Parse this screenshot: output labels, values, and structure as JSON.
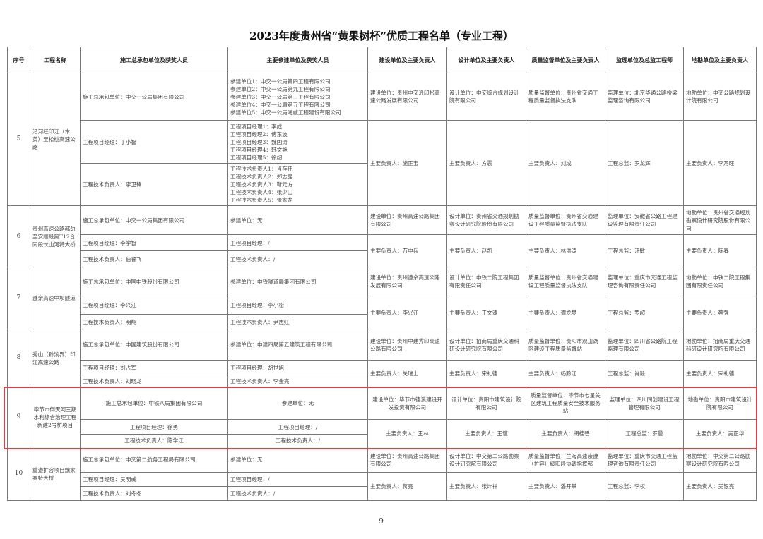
{
  "title": "2023年度贵州省“黄果树杯”优质工程名单（专业工程）",
  "page_number": "9",
  "highlight_color": "#d9434a",
  "headers": [
    "序号",
    "工程名称",
    "施工总承包单位及获奖人员",
    "主要参建单位及获奖人员",
    "建设单位及主要负责人",
    "设计单位及主要负责人",
    "质量监督单位及主要负责人",
    "监理单位及总监工程师",
    "地勘单位及主要负责人"
  ],
  "rows": [
    {
      "no": "5",
      "name": "沿河经印江（木黄）至松桃高速公路",
      "contractor": [
        "施工总承包单位：中交一公局集团有限公司",
        "工程项目经理：丁小智",
        "工程技术负责人：李卫锋"
      ],
      "participants": [
        "参建单位1：中交一公局第四工程有限公司\n参建单位2：中交一公局第九工程有限公司\n参建单位3：中交一公局第三工程有限公司\n参建单位4：中交一公局第五工程有限公司\n参建单位5：中交一公局海威工程建设有限公司",
        "工程项目经理1：李成\n工程项目经理2：傅东波\n工程项目经理3：魏国涛\n工程项目经理4：韩文艳\n工程项目经理5：徐超",
        "工程技术负责人1：肖存伟\n工程技术负责人2：郑志强\n工程技术负责人3：靳元方\n工程技术负责人4：张少山\n工程技术负责人5：张家龙"
      ],
      "builder": [
        "建设单位：贵州中交沿印松高速公路发展有限公司",
        "主要负责人：施正宝"
      ],
      "designer": [
        "设计单位：中交综合规划设计院有限公司",
        "主要负责人：方震"
      ],
      "quality": [
        "质量监督单位：贵州省交通工程质量监督执法支队",
        "主要负责人：刘成"
      ],
      "supervisor": [
        "监理单位：北京华通公路桥梁监理咨询有限公司",
        "工程总监：罗龙辉"
      ],
      "survey": [
        "地勘单位：中交公路规划设计院有限公司",
        "主要负责人：李乃旺"
      ]
    },
    {
      "no": "6",
      "name": "贵州高速公路都匀至安顺段第T12合同段长山河特大桥",
      "contractor": [
        "施工总承包单位：中交一公局集团有限公司",
        "工程项目经理：李学智",
        "工程技术负责人：伯睿飞"
      ],
      "participants": [
        "参建单位：无",
        "工程项目经理：/",
        "工程技术负责人：/"
      ],
      "builder": [
        "建设单位：贵州高速公路集团有限公司",
        "主要负责人：万中兵"
      ],
      "designer": [
        "设计单位：贵州省交通规划勘察设计研究院股份有限公司",
        "主要负责人：赵凯"
      ],
      "quality": [
        "质量监督单位：贵州省交通建设工程质量监督执法支队",
        "主要负责人：林洪涛"
      ],
      "supervisor": [
        "监理单位：安徽省公路工程建设监理有限责任公司",
        "工程总监：汪敏"
      ],
      "survey": [
        "地勘单位：贵州省交通规划勘察设计研究院股份有限公司",
        "主要负责人：陈春"
      ]
    },
    {
      "no": "7",
      "name": "遵余高速中坝隧道",
      "contractor": [
        "施工总承包单位：中国中铁股份有限公司",
        "工程项目经理：李兴江",
        "工程技术负责人：明翔"
      ],
      "participants": [
        "参建单位：中铁隧道局集团有限公司",
        "工程项目经理：李小松",
        "工程技术负责人：尹志红"
      ],
      "builder": [
        "建设单位：贵州遵余高速公路发展有限公司",
        "主要负责人：李兴江"
      ],
      "designer": [
        "设计单位：中铁二院工程集团有限责任公司",
        "主要负责人：王文涛"
      ],
      "quality": [
        "质量监督单位：贵州省交通建设工程质量监督执法支队",
        "主要负责人：谭龙梦"
      ],
      "supervisor": [
        "监理单位：重庆市交通工程监理咨询有限责任公司",
        "工程总监：罗超"
      ],
      "survey": [
        "地勘单位：中铁二院工程集团有限责任公司",
        "主要负责人：蔡强"
      ]
    },
    {
      "no": "8",
      "name": "秀山（黔渝界）印江高速公路",
      "contractor": [
        "施工总承包单位：中国建筑股份有限公司",
        "工程项目经理：刘占军",
        "工程技术负责人：刘晓龙"
      ],
      "participants": [
        "参建单位：中建四局第五建筑工程有限公司",
        "工程项目经理：胡世旭",
        "工程技术负责人：李金亮"
      ],
      "builder": [
        "建设单位：贵州中建秀印高速公路有限公司",
        "主要负责人：关瑞士"
      ],
      "designer": [
        "设计单位：招商局重庆交通科研设计研究院有限公司",
        "主要负责人：宋礼德"
      ],
      "quality": [
        "质量监督单位：贵阳市观山湖区建设工程质量监督站",
        "主要负责人：杨黔江"
      ],
      "supervisor": [
        "监理单位：四川省公路院工程监理有限公司",
        "工程总监：肖毅"
      ],
      "survey": [
        "地勘单位：招商局重庆交通科研设计研究院有限公司",
        "主要负责人：宋礼德"
      ]
    },
    {
      "no": "9",
      "highlighted": true,
      "name": "毕节市倒天河三期水利综合治理工程新建2号桥项目",
      "contractor": [
        "施工总承包单位：中铁八局集团有限公司",
        "工程项目经理：徐勇",
        "工程技术负责人：陈学江"
      ],
      "participants": [
        "参建单位：无",
        "工程项目经理：/",
        "工程技术负责人：/"
      ],
      "builder": [
        "建设单位：毕节市德溪建设开发投资有限公司",
        "主要负责人：王林"
      ],
      "designer": [
        "设计单位：贵阳市建筑设计院有限公司",
        "主要负责人：王谊"
      ],
      "quality": [
        "质量监督单位：毕节市七星关区建筑工程质量安全技术服务站",
        "主要负责人：胡桂碧"
      ],
      "supervisor": [
        "监理单位：四川同创建设工程管理有限公司",
        "工程总监：罗曼"
      ],
      "survey": [
        "地勘单位：贵阳市建筑设计院有限公司",
        "主要负责人：吴正华"
      ]
    },
    {
      "no": "10",
      "name": "重遵扩容项目魏家寨特大桥",
      "contractor": [
        "施工总承包单位：中交第二航务工程局有限公司",
        "工程项目经理：吴明威",
        "工程技术负责人：刘冬冬"
      ],
      "participants": [
        "参建单位：无",
        "工程项目经理：/",
        "工程技术负责人：/"
      ],
      "builder": [
        "建设单位：贵州高速公路集团有限公司",
        "主要负责人：蒋亮"
      ],
      "designer": [
        "设计单位：中交第二公路勘察设计研究院有限公司",
        "主要负责人：张炸祥"
      ],
      "quality": [
        "质量监督单位：兰海高速崇遵（扩容）绥阳段协调指挥部",
        "主要负责人：潘开攀"
      ],
      "supervisor": [
        "监理单位：重庆市交通工程监理咨询有限责任公司",
        "工程总监：李权"
      ],
      "survey": [
        "地勘单位：中交第二公路勘察设计研究院有限公司",
        "主要负责人：吴银亮"
      ]
    }
  ]
}
